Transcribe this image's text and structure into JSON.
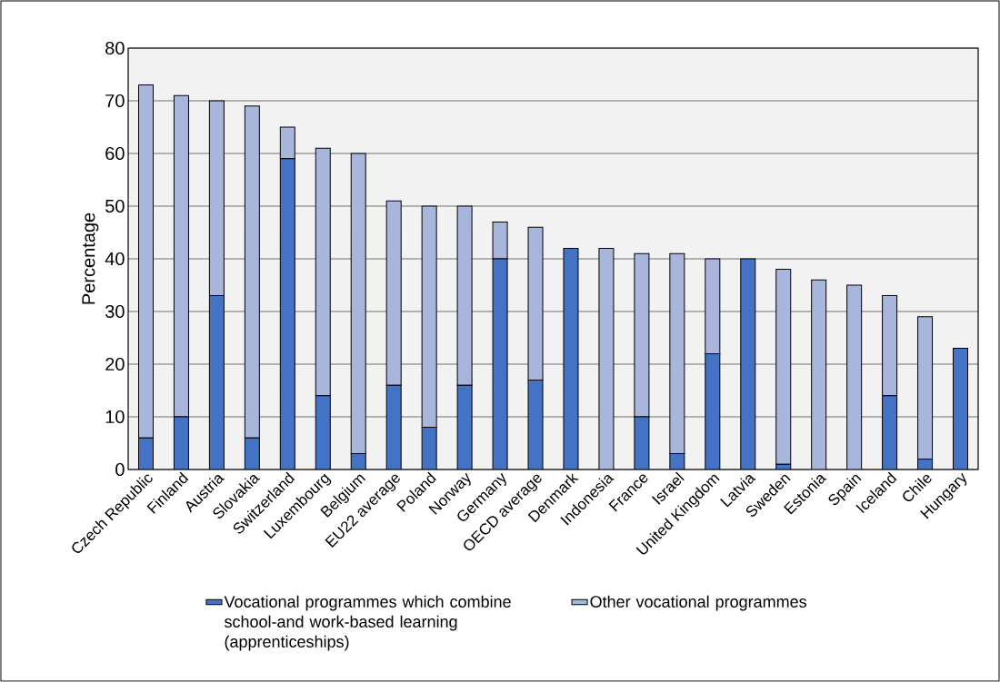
{
  "chart_data": {
    "type": "bar",
    "stacked": true,
    "ylabel": "Percentage",
    "categories": [
      "Czech Republic",
      "Finland",
      "Austria",
      "Slovakia",
      "Switzerland",
      "Luxembourg",
      "Belgium",
      "EU22 average",
      "Poland",
      "Norway",
      "Germany",
      "OECD average",
      "Denmark",
      "Indonesia",
      "France",
      "Israel",
      "United Kingdom",
      "Latvia",
      "Sweden",
      "Estonia",
      "Spain",
      "Iceland",
      "Chile",
      "Hungary"
    ],
    "series": [
      {
        "name": "Vocational programmes which combine school-and work-based learning (apprenticeships)",
        "color": "#4472c4",
        "values": [
          6,
          10,
          33,
          6,
          59,
          14,
          3,
          16,
          8,
          16,
          40,
          17,
          42,
          0,
          10,
          3,
          22,
          40,
          1,
          0,
          0,
          14,
          2,
          23
        ]
      },
      {
        "name": "Other vocational programmes",
        "color": "#a9b6db",
        "values": [
          67,
          61,
          37,
          63,
          6,
          47,
          57,
          35,
          42,
          34,
          7,
          29,
          0,
          42,
          31,
          38,
          18,
          0,
          37,
          36,
          35,
          19,
          27,
          0
        ]
      }
    ],
    "ylim": [
      0,
      80
    ],
    "yticks": [
      0,
      10,
      20,
      30,
      40,
      50,
      60,
      70,
      80
    ],
    "grid": "y",
    "legend": "bottom"
  }
}
